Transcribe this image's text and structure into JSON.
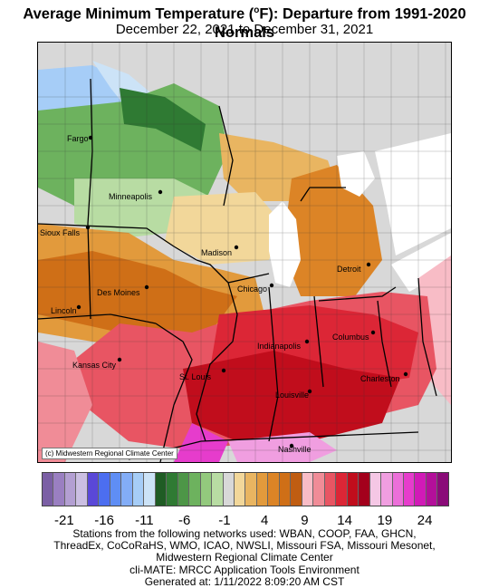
{
  "title": {
    "prefix": "Average Minimum Temperature (",
    "degree": "o",
    "suffix": "F): Departure from 1991-2020 Normals"
  },
  "subtitle": "December 22, 2021 to December 31, 2021",
  "map": {
    "credit": "(c) Midwestern Regional Climate Center",
    "cities": [
      {
        "name": "Fargo"
      },
      {
        "name": "Minneapolis"
      },
      {
        "name": "Sioux Falls"
      },
      {
        "name": "Madison"
      },
      {
        "name": "Des Moines"
      },
      {
        "name": "Lincoln"
      },
      {
        "name": "Chicago"
      },
      {
        "name": "Detroit"
      },
      {
        "name": "Columbus"
      },
      {
        "name": "Indianapolis"
      },
      {
        "name": "Kansas City"
      },
      {
        "name": "St. Louis"
      },
      {
        "name": "Charleston"
      },
      {
        "name": "Louisville"
      },
      {
        "name": "Nashville"
      }
    ]
  },
  "legend": {
    "colors": [
      "#7b5fa5",
      "#9a7fc1",
      "#b39fd2",
      "#cbbfe2",
      "#5a48d8",
      "#4c6ef0",
      "#5f8ef5",
      "#83adf7",
      "#a6cdf7",
      "#cce3f7",
      "#1f5c24",
      "#2f7a33",
      "#4d9647",
      "#6db25e",
      "#93c97d",
      "#b8dca3",
      "#d8d8d8",
      "#f2d79a",
      "#e9b561",
      "#e29a3c",
      "#dc8426",
      "#cf6f17",
      "#c05d12",
      "#f8bcc6",
      "#f08c97",
      "#e85563",
      "#dc2636",
      "#c10d1c",
      "#a3001c",
      "#f5c7e5",
      "#f09ee0",
      "#ec6fd9",
      "#e63ccc",
      "#d11ab7",
      "#b30f9a",
      "#8a0b78"
    ],
    "tick_labels": [
      "-21",
      "-16",
      "-11",
      "-6",
      "-1",
      "4",
      "9",
      "14",
      "19",
      "24"
    ]
  },
  "footer": {
    "line1": "Stations from the following networks used: WBAN, COOP, FAA, GHCN,",
    "line2": "ThreadEx, CoCoRaHS, WMO, ICAO, NWSLI, Missouri FSA, Missouri Mesonet,",
    "line3": "Midwestern Regional Climate Center",
    "line4": "cli-MATE: MRCC Application Tools Environment",
    "line5": "Generated at: 1/11/2022 8:09:20 AM CST"
  }
}
